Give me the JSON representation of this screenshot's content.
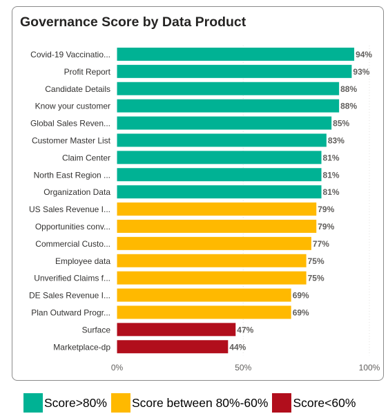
{
  "card": {
    "title": "Governance Score by Data Product"
  },
  "colors": {
    "high": "#00b294",
    "mid": "#ffb900",
    "low": "#b10e1c"
  },
  "legend": [
    {
      "label": "Score>80%",
      "color": "#00b294"
    },
    {
      "label": "Score between 80%-60%",
      "color": "#ffb900"
    },
    {
      "label": "Score<60%",
      "color": "#b10e1c"
    }
  ],
  "chart_data": {
    "type": "bar",
    "orientation": "horizontal",
    "title": "Governance Score by Data Product",
    "categories": [
      "Covid-19 Vaccinatio...",
      "Profit Report",
      "Candidate Details",
      "Know your customer",
      "Global Sales Reven...",
      "Customer Master List",
      "Claim Center",
      "North East Region ...",
      "Organization Data",
      "US Sales Revenue I...",
      "Opportunities conv...",
      "Commercial Custo...",
      "Employee data",
      "Unverified Claims f...",
      "DE Sales Revenue I...",
      "Plan Outward Progr...",
      "Surface",
      "Marketplace-dp"
    ],
    "values": [
      94,
      93,
      88,
      88,
      85,
      83,
      81,
      81,
      81,
      79,
      79,
      77,
      75,
      75,
      69,
      69,
      47,
      44
    ],
    "data_labels": [
      "94%",
      "93%",
      "88%",
      "88%",
      "85%",
      "83%",
      "81%",
      "81%",
      "81%",
      "79%",
      "79%",
      "77%",
      "75%",
      "75%",
      "69%",
      "69%",
      "47%",
      "44%"
    ],
    "x_ticks": [
      "0%",
      "50%",
      "100%"
    ],
    "xlim": [
      0,
      100
    ],
    "grid": true,
    "legend_position": "bottom"
  }
}
